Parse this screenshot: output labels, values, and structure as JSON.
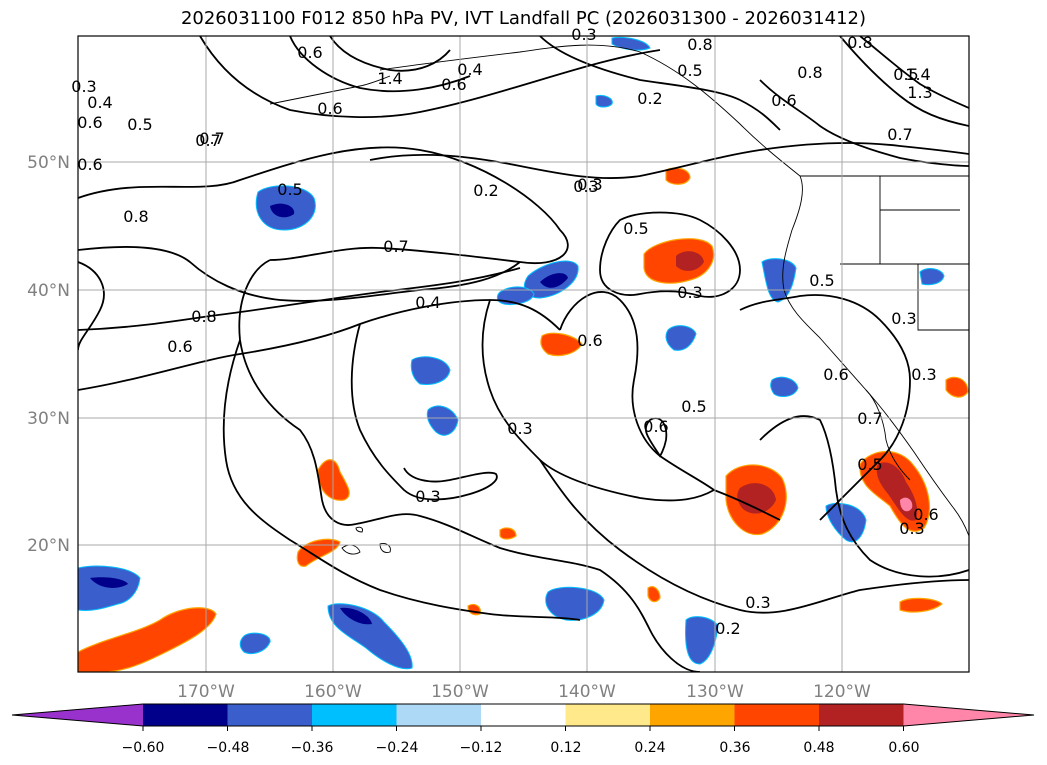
{
  "title": "2026031100 F012 850 hPa PV, IVT Landfall PC (2026031300 - 2026031412)",
  "lat_labels": [
    "50°N",
    "40°N",
    "30°N",
    "20°N"
  ],
  "lon_labels": [
    "170°W",
    "160°W",
    "150°W",
    "140°W",
    "130°W",
    "120°W"
  ],
  "colorbar": {
    "colors": [
      "#9932cc",
      "#00008b",
      "#3a5fcd",
      "#00bfff",
      "#add8f6",
      "#ffffff",
      "#ffe98a",
      "#ffa500",
      "#ff4500",
      "#b22222",
      "#ff86a9"
    ],
    "tick_labels": [
      "−0.60",
      "−0.48",
      "−0.36",
      "−0.24",
      "−0.12",
      "0.12",
      "0.24",
      "0.36",
      "0.48",
      "0.60"
    ]
  },
  "contour_labels": [
    "0.8",
    "0.4",
    "0.6",
    "0.5",
    "0.7",
    "0.2",
    "0.3",
    "0.5",
    "0.7",
    "0.8",
    "0.6",
    "0.5",
    "0.8",
    "0.6",
    "0.4",
    "1.4",
    "0.6",
    "0.6",
    "0.2",
    "0.3",
    "0.4",
    "0.8",
    "0.6",
    "0.5",
    "0.3",
    "0.5",
    "0.3",
    "0.6",
    "0.3",
    "0.6",
    "0.5",
    "0.7",
    "0.6",
    "0.5",
    "0.3",
    "0.3",
    "0.3",
    "0.2",
    "0.3",
    "0.6",
    "0.7",
    "0.5",
    "0.3",
    "0.3",
    "0.6",
    "1.4",
    "1.3",
    "0.8",
    "0.7"
  ]
}
